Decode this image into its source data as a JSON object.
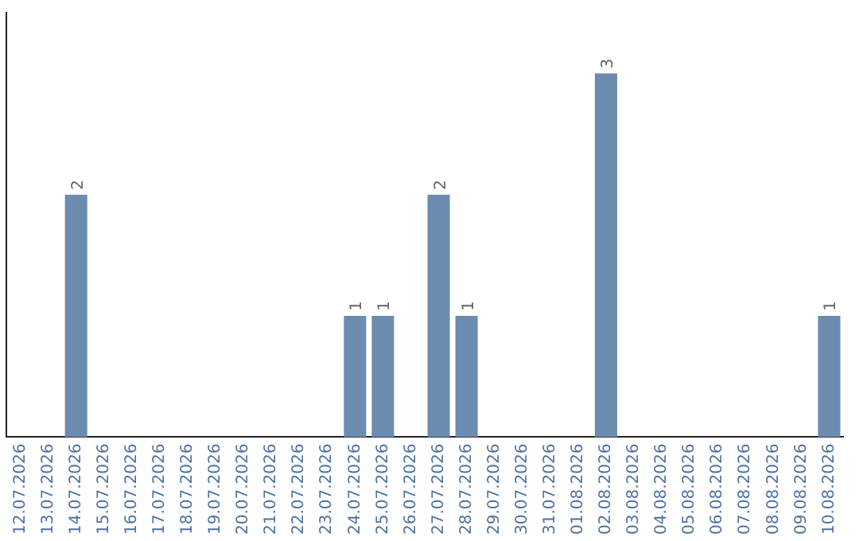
{
  "chart_data": {
    "type": "bar",
    "categories": [
      "12.07.2026",
      "13.07.2026",
      "14.07.2026",
      "15.07.2026",
      "16.07.2026",
      "17.07.2026",
      "18.07.2026",
      "19.07.2026",
      "20.07.2026",
      "21.07.2026",
      "22.07.2026",
      "23.07.2026",
      "24.07.2026",
      "25.07.2026",
      "26.07.2026",
      "27.07.2026",
      "28.07.2026",
      "29.07.2026",
      "30.07.2026",
      "31.07.2026",
      "01.08.2026",
      "02.08.2026",
      "03.08.2026",
      "04.08.2026",
      "05.08.2026",
      "06.08.2026",
      "07.08.2026",
      "08.08.2026",
      "09.08.2026",
      "10.08.2026"
    ],
    "values": [
      0,
      0,
      2,
      0,
      0,
      0,
      0,
      0,
      0,
      0,
      0,
      0,
      1,
      1,
      0,
      2,
      1,
      0,
      0,
      0,
      0,
      3,
      0,
      0,
      0,
      0,
      0,
      0,
      0,
      1
    ],
    "value_labels": [
      null,
      null,
      "2",
      null,
      null,
      null,
      null,
      null,
      null,
      null,
      null,
      null,
      "1",
      "1",
      null,
      "2",
      "1",
      null,
      null,
      null,
      null,
      "3",
      null,
      null,
      null,
      null,
      null,
      null,
      null,
      "1"
    ],
    "color": "#6b8cae",
    "grid": false,
    "legend": false,
    "tick_labels": "x"
  }
}
